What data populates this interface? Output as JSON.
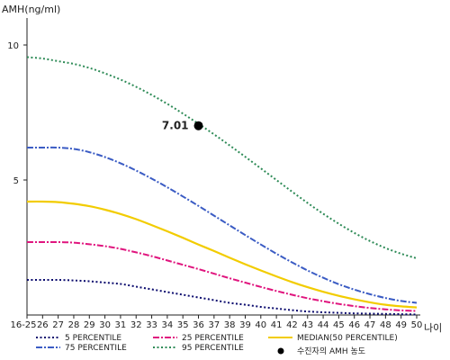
{
  "chart_data": {
    "type": "line",
    "title": "",
    "ylabel": "AMH(ng/ml)",
    "xlabel": "나이",
    "ylim": [
      0,
      11
    ],
    "yticks": [
      5,
      10
    ],
    "categories": [
      "16-25",
      "26",
      "27",
      "28",
      "29",
      "30",
      "31",
      "32",
      "33",
      "34",
      "35",
      "36",
      "37",
      "38",
      "39",
      "40",
      "41",
      "42",
      "43",
      "44",
      "45",
      "46",
      "47",
      "48",
      "49",
      "50"
    ],
    "x_ages": [
      25,
      26,
      27,
      28,
      29,
      30,
      31,
      32,
      33,
      34,
      35,
      36,
      37,
      38,
      39,
      40,
      41,
      42,
      43,
      44,
      45,
      46,
      47,
      48,
      49,
      50
    ],
    "grid": false,
    "legend_position": "bottom",
    "series": [
      {
        "name": "5 PERCENTILE",
        "color": "#0b0b6e",
        "dash": "2,2.5",
        "values": [
          1.3,
          1.3,
          1.3,
          1.28,
          1.25,
          1.2,
          1.15,
          1.05,
          0.95,
          0.85,
          0.75,
          0.65,
          0.55,
          0.45,
          0.38,
          0.3,
          0.24,
          0.18,
          0.13,
          0.1,
          0.08,
          0.06,
          0.05,
          0.04,
          0.03,
          0.02
        ]
      },
      {
        "name": "25 PERCENTILE",
        "color": "#e0157e",
        "dash": "7,2,2,2",
        "values": [
          2.7,
          2.7,
          2.7,
          2.68,
          2.62,
          2.55,
          2.45,
          2.32,
          2.18,
          2.02,
          1.86,
          1.7,
          1.53,
          1.36,
          1.2,
          1.04,
          0.89,
          0.75,
          0.62,
          0.51,
          0.41,
          0.33,
          0.26,
          0.21,
          0.17,
          0.15
        ]
      },
      {
        "name": "MEDIAN(50 PERCENTILE)",
        "color": "#f2cc00",
        "dash": "",
        "values": [
          4.2,
          4.2,
          4.18,
          4.12,
          4.03,
          3.9,
          3.74,
          3.55,
          3.33,
          3.1,
          2.86,
          2.61,
          2.37,
          2.12,
          1.88,
          1.65,
          1.43,
          1.22,
          1.03,
          0.86,
          0.71,
          0.58,
          0.47,
          0.38,
          0.32,
          0.28
        ]
      },
      {
        "name": "75 PERCENTILE",
        "color": "#3b5cc4",
        "dash": "7,2,2,2",
        "values": [
          6.2,
          6.2,
          6.2,
          6.15,
          6.03,
          5.85,
          5.62,
          5.35,
          5.05,
          4.73,
          4.39,
          4.04,
          3.68,
          3.32,
          2.96,
          2.61,
          2.27,
          1.95,
          1.65,
          1.38,
          1.14,
          0.94,
          0.77,
          0.63,
          0.52,
          0.45
        ]
      },
      {
        "name": "95 PERCENTILE",
        "color": "#2e8b57",
        "dash": "2,2.5",
        "values": [
          9.55,
          9.5,
          9.4,
          9.3,
          9.15,
          8.95,
          8.72,
          8.45,
          8.15,
          7.82,
          7.46,
          7.08,
          6.69,
          6.28,
          5.86,
          5.43,
          5.0,
          4.57,
          4.15,
          3.75,
          3.38,
          3.04,
          2.74,
          2.48,
          2.27,
          2.1
        ]
      }
    ],
    "patient_point": {
      "name": "수진자의 AMH 농도",
      "category": "36",
      "value": 7.01,
      "label": "7.01",
      "color": "#000000"
    }
  }
}
